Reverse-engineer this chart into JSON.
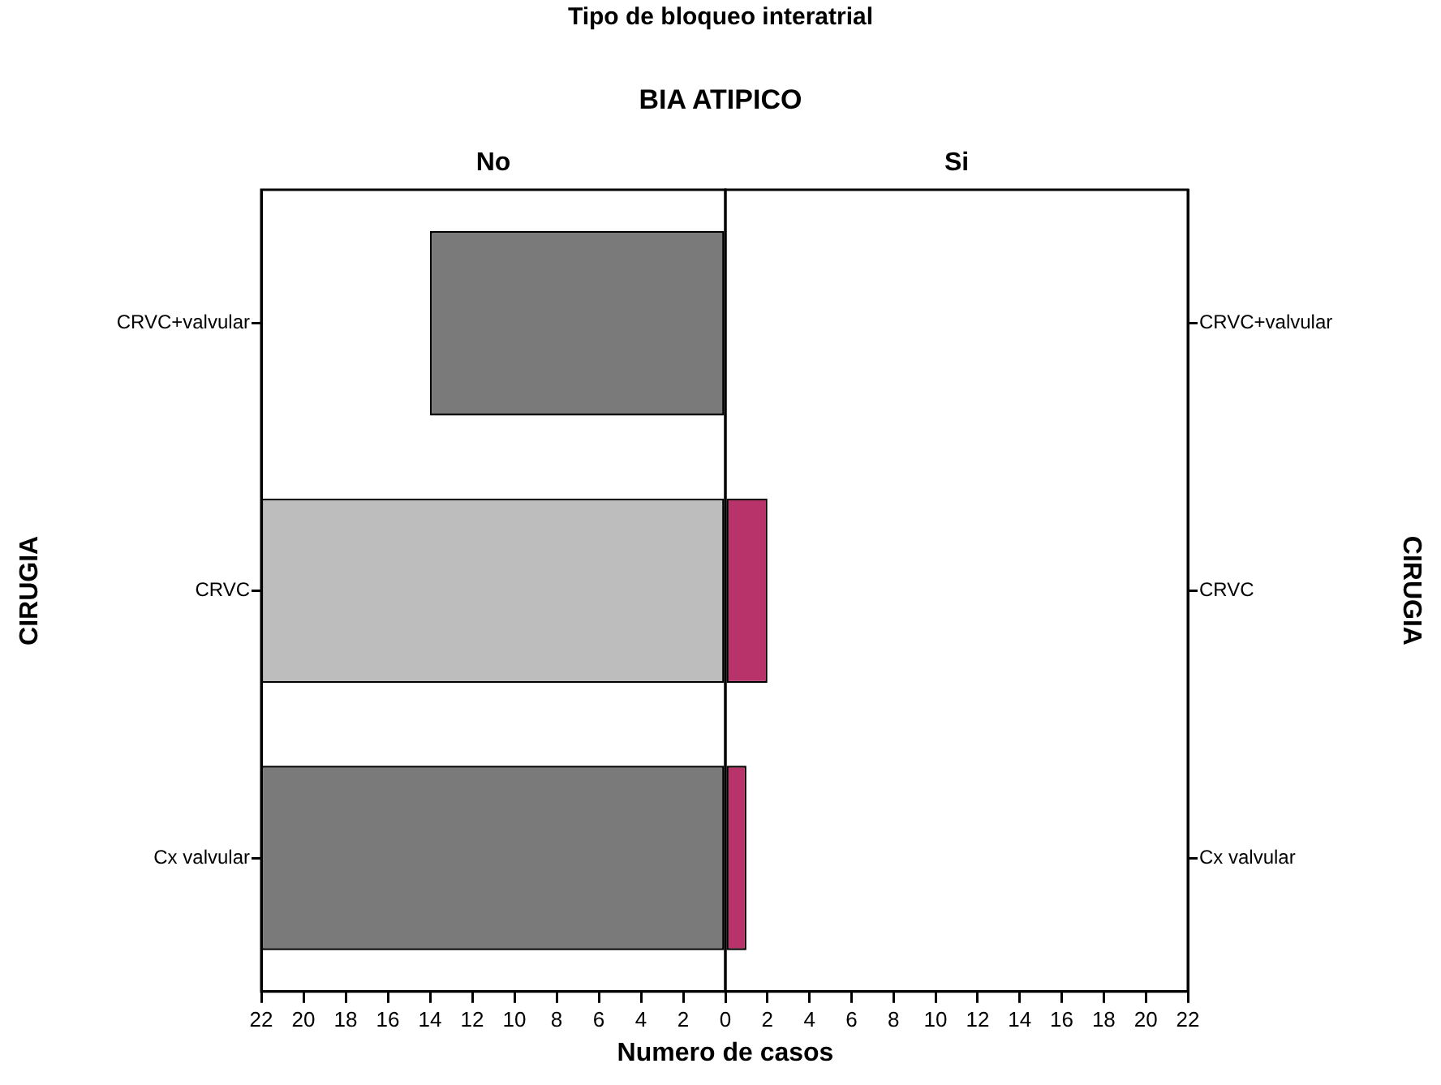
{
  "chart_data": [
    {
      "type": "bar",
      "orientation": "horizontal",
      "title": "Tipo de bloqueo interatrial",
      "annotations": [
        "BIA ATIPICO"
      ],
      "subtitle": "No",
      "xlabel": "Numero de casos",
      "ylabel": "CIRUGIA",
      "categories": [
        "CRVC+valvular",
        "CRVC",
        "Cx valvular"
      ],
      "values": [
        14,
        22,
        22
      ],
      "colors": [
        "#7a7a7a",
        "#bdbdbd",
        "#7a7a7a"
      ],
      "xlim": [
        22,
        0
      ],
      "xticks": [
        22,
        20,
        18,
        16,
        14,
        12,
        10,
        8,
        6,
        4,
        2,
        0
      ],
      "grid": false,
      "legend": false
    },
    {
      "type": "bar",
      "orientation": "horizontal",
      "subtitle": "Si",
      "ylabel": "CIRUGIA",
      "categories": [
        "CRVC+valvular",
        "CRVC",
        "Cx valvular"
      ],
      "values": [
        0,
        2,
        1
      ],
      "colors": [
        "#b8336a",
        "#b8336a",
        "#b8336a"
      ],
      "xlim": [
        0,
        22
      ],
      "xticks": [
        {
          "value": 0,
          "label": null
        },
        2,
        4,
        6,
        8,
        10,
        12,
        14,
        16,
        18,
        20,
        22
      ],
      "grid": false,
      "legend": false
    }
  ]
}
